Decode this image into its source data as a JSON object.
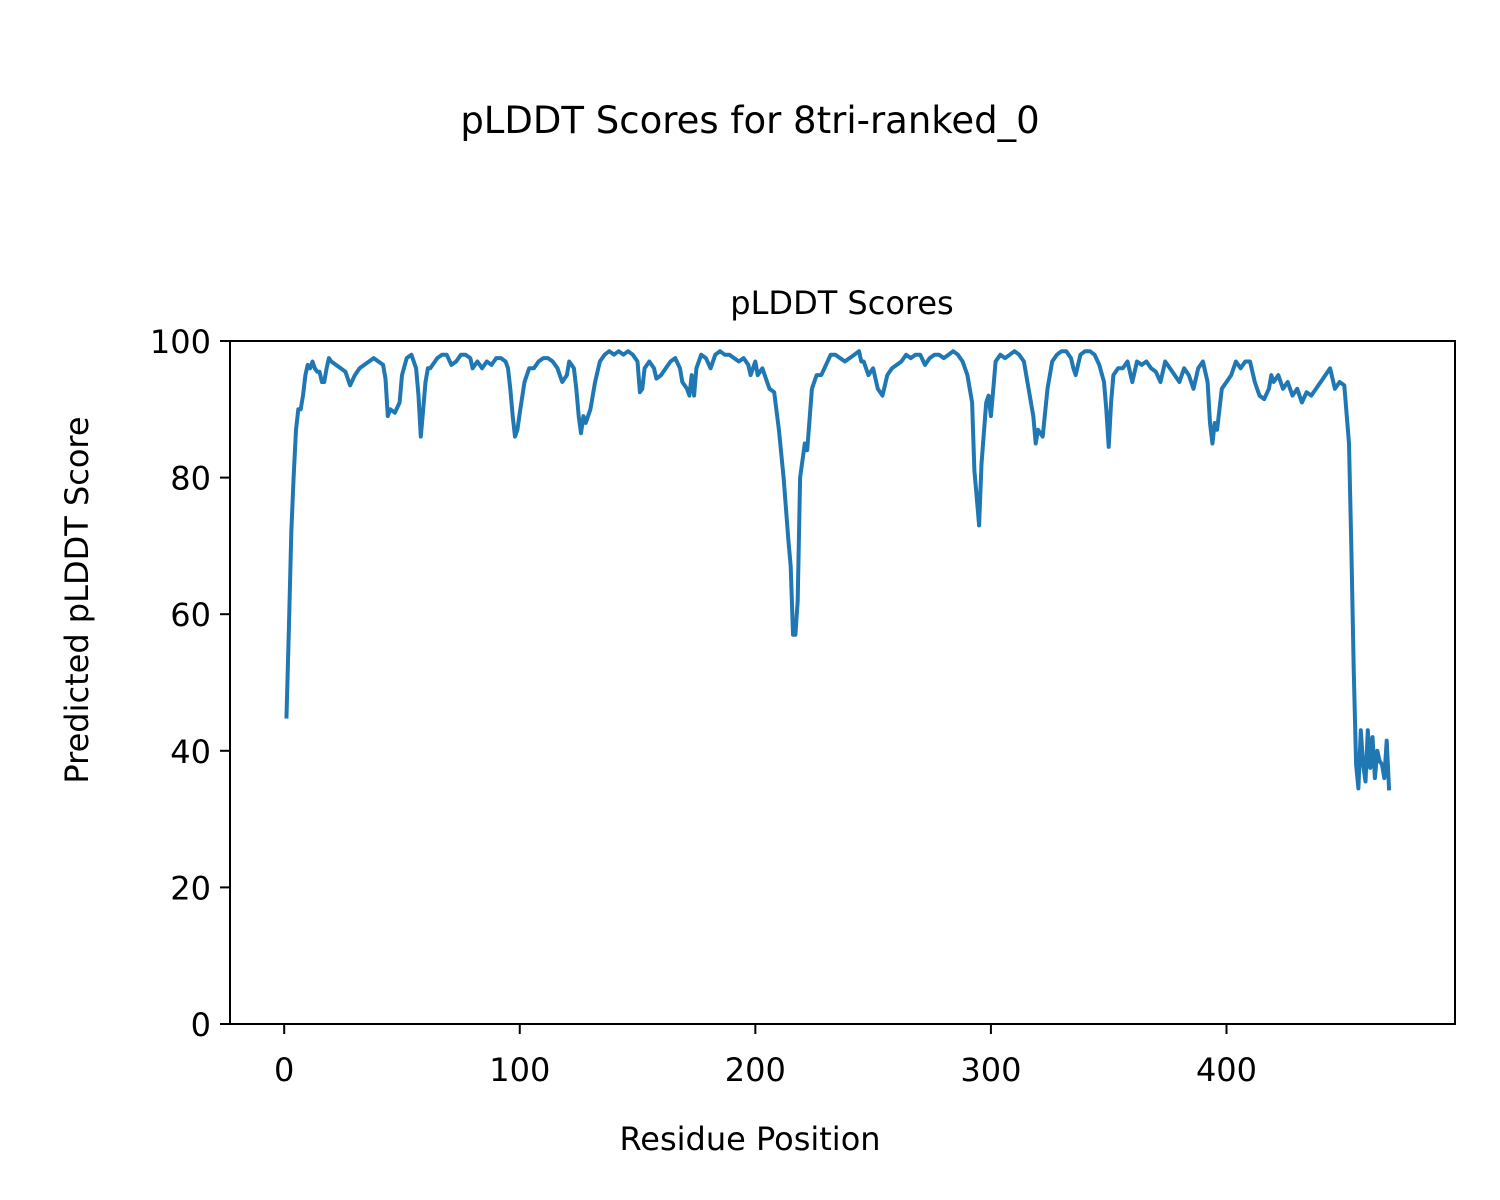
{
  "suptitle": "pLDDT Scores for 8tri-ranked_0",
  "chart_data": {
    "type": "line",
    "title": "pLDDT Scores",
    "xlabel": "Residue Position",
    "ylabel": "Predicted pLDDT Score",
    "xlim": [
      -23,
      497
    ],
    "ylim": [
      0,
      100
    ],
    "xticks": [
      0,
      100,
      200,
      300,
      400
    ],
    "yticks": [
      0,
      20,
      40,
      60,
      80,
      100
    ],
    "grid": false,
    "legend": "none",
    "line_color": "#1f77b4",
    "series": [
      {
        "points": [
          [
            1,
            45
          ],
          [
            2,
            58
          ],
          [
            3,
            72
          ],
          [
            4,
            80
          ],
          [
            5,
            87
          ],
          [
            6,
            90
          ],
          [
            7,
            90
          ],
          [
            8,
            92
          ],
          [
            9,
            95
          ],
          [
            10,
            96.5
          ],
          [
            11,
            96
          ],
          [
            12,
            97
          ],
          [
            13,
            96
          ],
          [
            14,
            95.5
          ],
          [
            15,
            95.5
          ],
          [
            16,
            94
          ],
          [
            17,
            94
          ],
          [
            18,
            96
          ],
          [
            19,
            97.5
          ],
          [
            20,
            97
          ],
          [
            22,
            96.5
          ],
          [
            24,
            96
          ],
          [
            26,
            95.5
          ],
          [
            28,
            93.5
          ],
          [
            30,
            95
          ],
          [
            32,
            96
          ],
          [
            34,
            96.5
          ],
          [
            36,
            97
          ],
          [
            38,
            97.5
          ],
          [
            40,
            97
          ],
          [
            42,
            96.5
          ],
          [
            43,
            94.5
          ],
          [
            44,
            89
          ],
          [
            45,
            90
          ],
          [
            47,
            89.5
          ],
          [
            49,
            91
          ],
          [
            50,
            95
          ],
          [
            52,
            97.5
          ],
          [
            54,
            98
          ],
          [
            56,
            96
          ],
          [
            57,
            92
          ],
          [
            58,
            86
          ],
          [
            59,
            90
          ],
          [
            60,
            94
          ],
          [
            61,
            96
          ],
          [
            62,
            96
          ],
          [
            63,
            96.5
          ],
          [
            65,
            97.5
          ],
          [
            67,
            98
          ],
          [
            69,
            98
          ],
          [
            71,
            96.5
          ],
          [
            73,
            97
          ],
          [
            75,
            98
          ],
          [
            77,
            98
          ],
          [
            79,
            97.5
          ],
          [
            80,
            96
          ],
          [
            82,
            97
          ],
          [
            84,
            96
          ],
          [
            86,
            97
          ],
          [
            88,
            96.5
          ],
          [
            90,
            97.5
          ],
          [
            92,
            97.5
          ],
          [
            94,
            97
          ],
          [
            95,
            96
          ],
          [
            96,
            93
          ],
          [
            97,
            89
          ],
          [
            98,
            86
          ],
          [
            99,
            87
          ],
          [
            100,
            89.5
          ],
          [
            102,
            94
          ],
          [
            104,
            96
          ],
          [
            106,
            96
          ],
          [
            108,
            97
          ],
          [
            110,
            97.5
          ],
          [
            112,
            97.5
          ],
          [
            114,
            97
          ],
          [
            116,
            96
          ],
          [
            117,
            95
          ],
          [
            118,
            94
          ],
          [
            120,
            95
          ],
          [
            121,
            97
          ],
          [
            123,
            96
          ],
          [
            124,
            93
          ],
          [
            125,
            89
          ],
          [
            126,
            86.5
          ],
          [
            127,
            89
          ],
          [
            128,
            88
          ],
          [
            130,
            90
          ],
          [
            132,
            94
          ],
          [
            134,
            97
          ],
          [
            136,
            98
          ],
          [
            138,
            98.5
          ],
          [
            140,
            98
          ],
          [
            142,
            98.5
          ],
          [
            144,
            98
          ],
          [
            146,
            98.5
          ],
          [
            148,
            98
          ],
          [
            150,
            97
          ],
          [
            151,
            92.5
          ],
          [
            152,
            93
          ],
          [
            153,
            96
          ],
          [
            155,
            97
          ],
          [
            157,
            96
          ],
          [
            158,
            94.5
          ],
          [
            160,
            95
          ],
          [
            162,
            96
          ],
          [
            164,
            97
          ],
          [
            166,
            97.5
          ],
          [
            168,
            96
          ],
          [
            169,
            94
          ],
          [
            171,
            93
          ],
          [
            172,
            92
          ],
          [
            173,
            95
          ],
          [
            174,
            92
          ],
          [
            175,
            96
          ],
          [
            177,
            98
          ],
          [
            179,
            97.5
          ],
          [
            181,
            96
          ],
          [
            183,
            98
          ],
          [
            185,
            98.5
          ],
          [
            187,
            98
          ],
          [
            189,
            98
          ],
          [
            191,
            97.5
          ],
          [
            193,
            97
          ],
          [
            195,
            97.5
          ],
          [
            197,
            96.5
          ],
          [
            198,
            95
          ],
          [
            200,
            97
          ],
          [
            201,
            95
          ],
          [
            203,
            96
          ],
          [
            205,
            94
          ],
          [
            206,
            93
          ],
          [
            208,
            92.5
          ],
          [
            210,
            87
          ],
          [
            212,
            80
          ],
          [
            214,
            71
          ],
          [
            215,
            67
          ],
          [
            216,
            57
          ],
          [
            217,
            57
          ],
          [
            218,
            62
          ],
          [
            219,
            80
          ],
          [
            221,
            85
          ],
          [
            222,
            84
          ],
          [
            224,
            93
          ],
          [
            226,
            95
          ],
          [
            228,
            95
          ],
          [
            230,
            96.5
          ],
          [
            232,
            98
          ],
          [
            234,
            98
          ],
          [
            236,
            97.5
          ],
          [
            238,
            97
          ],
          [
            240,
            97.5
          ],
          [
            242,
            98
          ],
          [
            244,
            98.5
          ],
          [
            245,
            97
          ],
          [
            246,
            97
          ],
          [
            248,
            95
          ],
          [
            250,
            96
          ],
          [
            252,
            93
          ],
          [
            254,
            92
          ],
          [
            256,
            95
          ],
          [
            258,
            96
          ],
          [
            260,
            96.5
          ],
          [
            262,
            97
          ],
          [
            264,
            98
          ],
          [
            266,
            97.5
          ],
          [
            268,
            98
          ],
          [
            270,
            98
          ],
          [
            272,
            96.5
          ],
          [
            274,
            97.5
          ],
          [
            276,
            98
          ],
          [
            278,
            98
          ],
          [
            280,
            97.5
          ],
          [
            282,
            98
          ],
          [
            284,
            98.5
          ],
          [
            286,
            98
          ],
          [
            288,
            97
          ],
          [
            290,
            95
          ],
          [
            292,
            91
          ],
          [
            293,
            81
          ],
          [
            294,
            77
          ],
          [
            295,
            73
          ],
          [
            296,
            82
          ],
          [
            298,
            91
          ],
          [
            299,
            92
          ],
          [
            300,
            89
          ],
          [
            301,
            93
          ],
          [
            302,
            97
          ],
          [
            304,
            98
          ],
          [
            306,
            97.5
          ],
          [
            308,
            98
          ],
          [
            310,
            98.5
          ],
          [
            312,
            98
          ],
          [
            314,
            97
          ],
          [
            316,
            93
          ],
          [
            318,
            89
          ],
          [
            319,
            85
          ],
          [
            320,
            87
          ],
          [
            322,
            86
          ],
          [
            324,
            93
          ],
          [
            326,
            97
          ],
          [
            328,
            98
          ],
          [
            330,
            98.5
          ],
          [
            332,
            98.5
          ],
          [
            334,
            97.5
          ],
          [
            335,
            96
          ],
          [
            336,
            95
          ],
          [
            338,
            98
          ],
          [
            340,
            98.5
          ],
          [
            342,
            98.5
          ],
          [
            344,
            98
          ],
          [
            346,
            96.5
          ],
          [
            348,
            94
          ],
          [
            349,
            90
          ],
          [
            350,
            84.5
          ],
          [
            351,
            91
          ],
          [
            352,
            95
          ],
          [
            354,
            96
          ],
          [
            356,
            96
          ],
          [
            358,
            97
          ],
          [
            360,
            94
          ],
          [
            362,
            97
          ],
          [
            364,
            96.5
          ],
          [
            366,
            97
          ],
          [
            368,
            96
          ],
          [
            370,
            95.5
          ],
          [
            372,
            94
          ],
          [
            374,
            97
          ],
          [
            376,
            96
          ],
          [
            378,
            95
          ],
          [
            380,
            94
          ],
          [
            382,
            96
          ],
          [
            384,
            95
          ],
          [
            386,
            93
          ],
          [
            388,
            96
          ],
          [
            390,
            97
          ],
          [
            392,
            94
          ],
          [
            393,
            88
          ],
          [
            394,
            85
          ],
          [
            395,
            88
          ],
          [
            396,
            87
          ],
          [
            398,
            93
          ],
          [
            400,
            94
          ],
          [
            402,
            95
          ],
          [
            404,
            97
          ],
          [
            406,
            96
          ],
          [
            408,
            97
          ],
          [
            410,
            97
          ],
          [
            412,
            94
          ],
          [
            414,
            92
          ],
          [
            416,
            91.5
          ],
          [
            418,
            93
          ],
          [
            419,
            95
          ],
          [
            420,
            94
          ],
          [
            422,
            95
          ],
          [
            424,
            93
          ],
          [
            426,
            94
          ],
          [
            428,
            92
          ],
          [
            430,
            93
          ],
          [
            432,
            91
          ],
          [
            434,
            92.5
          ],
          [
            436,
            92
          ],
          [
            438,
            93
          ],
          [
            440,
            94
          ],
          [
            442,
            95
          ],
          [
            444,
            96
          ],
          [
            446,
            93
          ],
          [
            448,
            94
          ],
          [
            450,
            93.5
          ],
          [
            452,
            85
          ],
          [
            453,
            70
          ],
          [
            454,
            52
          ],
          [
            455,
            38
          ],
          [
            456,
            34.5
          ],
          [
            457,
            43
          ],
          [
            458,
            38
          ],
          [
            459,
            35.5
          ],
          [
            460,
            43
          ],
          [
            461,
            37.5
          ],
          [
            462,
            42
          ],
          [
            463,
            36
          ],
          [
            464,
            40
          ],
          [
            465,
            38.5
          ],
          [
            466,
            38
          ],
          [
            467,
            36
          ],
          [
            468,
            41.5
          ],
          [
            469,
            34.5
          ]
        ]
      }
    ]
  }
}
